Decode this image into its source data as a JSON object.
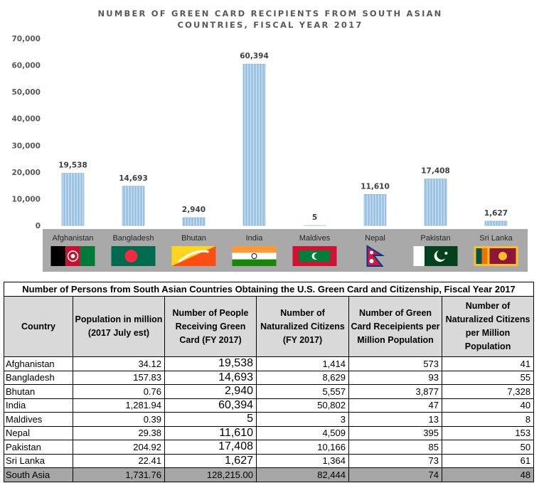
{
  "chart_data": {
    "type": "bar",
    "title": "NUMBER OF GREEN CARD RECIPIENTS FROM SOUTH ASIAN COUNTRIES, FISCAL YEAR 2017",
    "title_lines": [
      "NUMBER OF GREEN CARD RECIPIENTS FROM SOUTH ASIAN",
      "COUNTRIES, FISCAL YEAR 2017"
    ],
    "categories": [
      "Afghanistan",
      "Bangladesh",
      "Bhutan",
      "India",
      "Maldives",
      "Nepal",
      "Pakistan",
      "Sri Lanka"
    ],
    "values": [
      19538,
      14693,
      2940,
      60394,
      5,
      11610,
      17408,
      1627
    ],
    "value_labels": [
      "19,538",
      "14,693",
      "2,940",
      "60,394",
      "5",
      "11,610",
      "17,408",
      "1,627"
    ],
    "ylim": [
      0,
      70000
    ],
    "yticks": [
      0,
      10000,
      20000,
      30000,
      40000,
      50000,
      60000,
      70000
    ],
    "ytick_labels": [
      "0",
      "10,000",
      "20,000",
      "30,000",
      "40,000",
      "50,000",
      "60,000",
      "70,000"
    ],
    "xlabel": "",
    "ylabel": "",
    "grid": false,
    "bar_color": "#9dc3e6",
    "bar_stripe_color": "#ffffff",
    "flags": [
      "afghanistan-flag",
      "bangladesh-flag",
      "bhutan-flag",
      "india-flag",
      "maldives-flag",
      "nepal-flag",
      "pakistan-flag",
      "sri-lanka-flag"
    ],
    "band_color": "#a9a9a9"
  },
  "table": {
    "title": "Number of Persons from South Asian Countries Obtaining the U.S. Green Card and Citizenship, Fiscal Year 2017",
    "headers": [
      "Country",
      "Population in million (2017 July est)",
      "Number of People Receiving Green Card (FY 2017)",
      "Number of Naturalized Citizens (FY 2017)",
      "Number of Green Card Receipients per Million Population",
      "Number of Naturalized Citizens per Million Population"
    ],
    "rows": [
      [
        "Afghanistan",
        "34.12",
        "19,538",
        "1,414",
        "573",
        "41"
      ],
      [
        "Bangladesh",
        "157.83",
        "14,693",
        "8,629",
        "93",
        "55"
      ],
      [
        "Bhutan",
        "0.76",
        "2,940",
        "5,557",
        "3,877",
        "7,328"
      ],
      [
        "India",
        "1,281.94",
        "60,394",
        "50,802",
        "47",
        "40"
      ],
      [
        "Maldives",
        "0.39",
        "5",
        "3",
        "13",
        "8"
      ],
      [
        "Nepal",
        "29.38",
        "11,610",
        "4,509",
        "395",
        "153"
      ],
      [
        "Pakistan",
        "204.92",
        "17,408",
        "10,166",
        "85",
        "50"
      ],
      [
        "Sri Lanka",
        "22.41",
        "1,627",
        "1,364",
        "73",
        "61"
      ]
    ],
    "total": [
      "South Asia",
      "1,731.76",
      "128,215.00",
      "82,444",
      "74",
      "48"
    ],
    "header_bg": "#d9d9d9",
    "total_bg": "#a6a6a6"
  }
}
